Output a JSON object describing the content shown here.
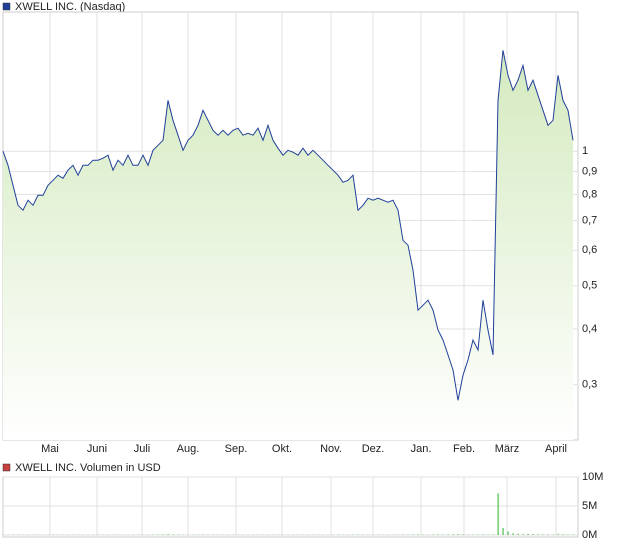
{
  "chart_data": [
    {
      "type": "line",
      "title": "XWELL INC. (Nasdaq)",
      "color": "#1f3f99",
      "fill": "#d4eabf",
      "log_scale": true,
      "grid": true,
      "xlim": [
        0,
        115
      ],
      "ylim": [
        0.2257,
        2.05
      ],
      "xticks": [
        {
          "value": 9.4,
          "label": "Mai"
        },
        {
          "value": 18.8,
          "label": "Juni"
        },
        {
          "value": 27.8,
          "label": "Juli"
        },
        {
          "value": 37,
          "label": "Aug."
        },
        {
          "value": 46.6,
          "label": "Sep."
        },
        {
          "value": 55.8,
          "label": "Okt."
        },
        {
          "value": 65.6,
          "label": "Nov."
        },
        {
          "value": 74,
          "label": "Dez."
        },
        {
          "value": 83.6,
          "label": "Jan."
        },
        {
          "value": 92.2,
          "label": "Feb."
        },
        {
          "value": 100.8,
          "label": "März"
        },
        {
          "value": 110.6,
          "label": "April"
        }
      ],
      "yticks": [
        1,
        {
          "value": 0.9,
          "label": "0,9"
        },
        {
          "value": 0.8,
          "label": "0,8"
        },
        {
          "value": 0.7,
          "label": "0,7"
        },
        {
          "value": 0.6,
          "label": "0,6"
        },
        {
          "value": 0.5,
          "label": "0,5"
        },
        {
          "value": 0.4,
          "label": "0,4"
        },
        {
          "value": 0.3,
          "label": "0,3"
        }
      ],
      "values": [
        1.0,
        0.93,
        0.839,
        0.757,
        0.738,
        0.777,
        0.757,
        0.797,
        0.797,
        0.839,
        0.861,
        0.884,
        0.87,
        0.907,
        0.93,
        0.884,
        0.93,
        0.93,
        0.955,
        0.955,
        0.965,
        0.98,
        0.907,
        0.955,
        0.93,
        0.98,
        0.93,
        0.93,
        0.98,
        0.93,
        1.005,
        1.031,
        1.058,
        1.3,
        1.173,
        1.086,
        1.005,
        1.058,
        1.086,
        1.143,
        1.235,
        1.173,
        1.114,
        1.086,
        1.114,
        1.086,
        1.114,
        1.126,
        1.086,
        1.097,
        1.086,
        1.126,
        1.058,
        1.143,
        1.058,
        1.016,
        0.98,
        1.005,
        0.995,
        0.98,
        1.016,
        0.98,
        1.005,
        0.98,
        0.955,
        0.93,
        0.907,
        0.884,
        0.852,
        0.861,
        0.884,
        0.738,
        0.757,
        0.785,
        0.777,
        0.785,
        0.777,
        0.769,
        0.777,
        0.738,
        0.632,
        0.616,
        0.542,
        0.441,
        0.452,
        0.464,
        0.441,
        0.398,
        0.378,
        0.35,
        0.324,
        0.277,
        0.315,
        0.341,
        0.378,
        0.359,
        0.464,
        0.398,
        0.35,
        1.3,
        1.683,
        1.479,
        1.369,
        1.442,
        1.557,
        1.369,
        1.442,
        1.334,
        1.235,
        1.143,
        1.173,
        1.479,
        1.3,
        1.235,
        1.058
      ]
    },
    {
      "type": "bar",
      "title": "XWELL INC. Volumen in USD",
      "color": "#4cc24c",
      "grid": true,
      "xlim": [
        0,
        115
      ],
      "ylim": [
        0,
        10000000
      ],
      "xticks": [
        9.4,
        18.8,
        27.8,
        37,
        46.6,
        55.8,
        65.6,
        74,
        83.6,
        92.2,
        100.8,
        110.6
      ],
      "yticks": [
        {
          "value": 10000000,
          "label": "10M"
        },
        {
          "value": 5000000,
          "label": "5M"
        },
        {
          "value": 0,
          "label": "0M"
        }
      ],
      "values": [
        50000,
        40000,
        60000,
        50000,
        40000,
        50000,
        40000,
        50000,
        40000,
        50000,
        60000,
        40000,
        50000,
        40000,
        50000,
        40000,
        50000,
        40000,
        50000,
        60000,
        40000,
        50000,
        40000,
        50000,
        40000,
        50000,
        40000,
        50000,
        40000,
        50000,
        60000,
        80000,
        100000,
        150000,
        80000,
        60000,
        50000,
        40000,
        50000,
        60000,
        80000,
        60000,
        50000,
        40000,
        50000,
        40000,
        50000,
        40000,
        50000,
        40000,
        50000,
        40000,
        50000,
        40000,
        50000,
        40000,
        50000,
        40000,
        50000,
        40000,
        50000,
        40000,
        50000,
        40000,
        50000,
        40000,
        50000,
        60000,
        50000,
        40000,
        50000,
        80000,
        60000,
        50000,
        40000,
        50000,
        40000,
        50000,
        40000,
        60000,
        80000,
        60000,
        100000,
        120000,
        80000,
        60000,
        80000,
        100000,
        80000,
        100000,
        120000,
        150000,
        100000,
        80000,
        60000,
        80000,
        100000,
        80000,
        100000,
        7200000,
        1200000,
        600000,
        300000,
        200000,
        150000,
        200000,
        150000,
        120000,
        100000,
        100000,
        80000,
        200000,
        120000,
        100000,
        80000
      ]
    }
  ]
}
